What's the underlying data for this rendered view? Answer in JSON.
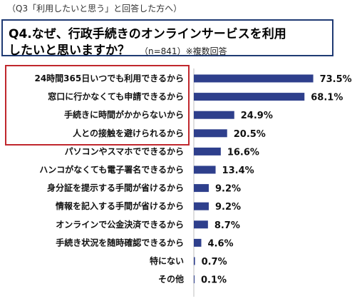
{
  "header": {
    "note": "（Q3「利用したいと思う」と回答した方へ）"
  },
  "question": {
    "line1": "Q4.なぜ、行政手続きのオンラインサービスを利用",
    "line2": "したいと思いますか？",
    "sub": "（n=841）※複数回答"
  },
  "chart_data": {
    "type": "bar",
    "orientation": "horizontal",
    "categories": [
      "24時間365日いつでも利用できるから",
      "窓口に行かなくても申請できるから",
      "手続きに時間がかからないから",
      "人との接触を避けられるから",
      "パソコンやスマホでできるから",
      "ハンコがなくても電子署名できるから",
      "身分証を提示する手間が省けるから",
      "情報を記入する手間が省けるから",
      "オンラインで公金決済できるから",
      "手続き状況を随時確認できるから",
      "特にない",
      "その他"
    ],
    "values": [
      73.5,
      68.1,
      24.9,
      20.5,
      16.6,
      13.4,
      9.2,
      9.2,
      8.7,
      4.6,
      0.7,
      0.1
    ],
    "value_labels": [
      "73.5%",
      "68.1%",
      "24.9%",
      "20.5%",
      "16.6%",
      "13.4%",
      "9.2%",
      "9.2%",
      "8.7%",
      "4.6%",
      "0.7%",
      "0.1%"
    ],
    "unit": "%",
    "bar_color": "#2e3f8c",
    "highlight_color": "#c0272d",
    "highlighted_categories": [
      0,
      1,
      2,
      3
    ]
  }
}
